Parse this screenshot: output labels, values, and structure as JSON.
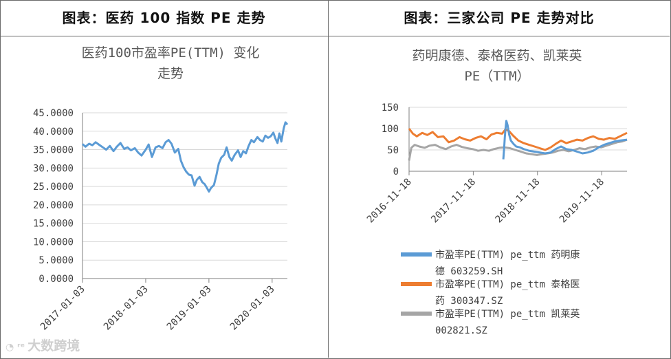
{
  "panels": {
    "left_title": "图表：医药 100 指数 PE 走势",
    "right_title": "图表：三家公司 PE 走势对比"
  },
  "watermark": "大数跨境",
  "chart_data": [
    {
      "type": "line",
      "title": "医药100市盈率PE(TTM) 变化走势",
      "title_lines": [
        "医药100市盈率PE(TTM) 变化",
        "走势"
      ],
      "ylim": [
        0,
        45
      ],
      "yticks": [
        "0.0000",
        "5.0000",
        "10.0000",
        "15.0000",
        "20.0000",
        "25.0000",
        "30.0000",
        "35.0000",
        "40.0000",
        "45.0000"
      ],
      "xlim": [
        "2017-01-03",
        "2020-03-31"
      ],
      "xticks": [
        "2017-01-03",
        "2018-01-03",
        "2019-01-03",
        "2020-01-03"
      ],
      "color": "#5b9bd5",
      "series": [
        {
          "name": "医药100市盈率PE(TTM)",
          "points": [
            [
              "2017-01-03",
              36.5
            ],
            [
              "2017-01-20",
              35.8
            ],
            [
              "2017-02-10",
              36.6
            ],
            [
              "2017-03-01",
              36.2
            ],
            [
              "2017-03-20",
              37.0
            ],
            [
              "2017-04-10",
              36.3
            ],
            [
              "2017-05-01",
              35.6
            ],
            [
              "2017-05-20",
              35.0
            ],
            [
              "2017-06-10",
              36.0
            ],
            [
              "2017-07-01",
              34.6
            ],
            [
              "2017-07-20",
              35.8
            ],
            [
              "2017-08-10",
              36.8
            ],
            [
              "2017-09-01",
              35.2
            ],
            [
              "2017-09-20",
              35.6
            ],
            [
              "2017-10-10",
              34.8
            ],
            [
              "2017-11-01",
              35.4
            ],
            [
              "2017-11-20",
              34.2
            ],
            [
              "2017-12-10",
              33.4
            ],
            [
              "2018-01-03",
              35.0
            ],
            [
              "2018-01-20",
              36.4
            ],
            [
              "2018-02-08",
              33.0
            ],
            [
              "2018-03-01",
              35.6
            ],
            [
              "2018-03-20",
              36.0
            ],
            [
              "2018-04-10",
              35.4
            ],
            [
              "2018-04-28",
              37.0
            ],
            [
              "2018-05-15",
              37.6
            ],
            [
              "2018-06-01",
              36.6
            ],
            [
              "2018-06-20",
              34.2
            ],
            [
              "2018-07-10",
              35.2
            ],
            [
              "2018-07-25",
              32.0
            ],
            [
              "2018-08-10",
              30.2
            ],
            [
              "2018-08-25",
              29.0
            ],
            [
              "2018-09-10",
              28.2
            ],
            [
              "2018-09-25",
              28.0
            ],
            [
              "2018-10-12",
              25.2
            ],
            [
              "2018-10-25",
              26.8
            ],
            [
              "2018-11-10",
              27.6
            ],
            [
              "2018-11-25",
              26.2
            ],
            [
              "2018-12-10",
              25.6
            ],
            [
              "2018-12-25",
              24.4
            ],
            [
              "2019-01-03",
              23.6
            ],
            [
              "2019-01-15",
              24.6
            ],
            [
              "2019-02-01",
              25.4
            ],
            [
              "2019-02-15",
              28.0
            ],
            [
              "2019-03-01",
              31.2
            ],
            [
              "2019-03-15",
              32.8
            ],
            [
              "2019-04-01",
              33.6
            ],
            [
              "2019-04-15",
              35.6
            ],
            [
              "2019-05-01",
              33.0
            ],
            [
              "2019-05-15",
              32.0
            ],
            [
              "2019-06-01",
              33.6
            ],
            [
              "2019-06-20",
              34.8
            ],
            [
              "2019-07-05",
              33.0
            ],
            [
              "2019-07-20",
              34.6
            ],
            [
              "2019-08-05",
              34.0
            ],
            [
              "2019-08-20",
              36.0
            ],
            [
              "2019-09-05",
              37.6
            ],
            [
              "2019-09-20",
              37.0
            ],
            [
              "2019-10-10",
              38.4
            ],
            [
              "2019-10-25",
              37.6
            ],
            [
              "2019-11-10",
              37.2
            ],
            [
              "2019-11-25",
              38.8
            ],
            [
              "2019-12-10",
              38.2
            ],
            [
              "2019-12-25",
              38.6
            ],
            [
              "2020-01-10",
              39.6
            ],
            [
              "2020-01-22",
              38.0
            ],
            [
              "2020-02-03",
              36.8
            ],
            [
              "2020-02-14",
              39.4
            ],
            [
              "2020-02-25",
              37.2
            ],
            [
              "2020-03-10",
              40.8
            ],
            [
              "2020-03-20",
              42.4
            ],
            [
              "2020-03-31",
              41.8
            ]
          ]
        }
      ]
    },
    {
      "type": "line",
      "title": "药明康德、泰格医药、凯莱英PE（TTM）",
      "title_lines": [
        "药明康德、泰格医药、凯莱英",
        "PE（TTM）"
      ],
      "ylim": [
        0,
        150
      ],
      "yticks": [
        "0",
        "50",
        "100",
        "150"
      ],
      "xlim": [
        "2016-11-18",
        "2020-04-10"
      ],
      "xticks": [
        "2016-11-18",
        "2017-11-18",
        "2018-11-18",
        "2019-11-18"
      ],
      "legend": "bottom",
      "series": [
        {
          "name": "市盈率PE(TTM) pe_ttm 药明康德 603259.SH",
          "label_lines": [
            "市盈率PE(TTM) pe_ttm 药明康",
            "德 603259.SH"
          ],
          "color": "#5b9bd5",
          "points": [
            [
              "2018-05-08",
              28
            ],
            [
              "2018-05-12",
              52
            ],
            [
              "2018-05-16",
              78
            ],
            [
              "2018-05-20",
              98
            ],
            [
              "2018-05-25",
              118
            ],
            [
              "2018-06-01",
              108
            ],
            [
              "2018-06-10",
              86
            ],
            [
              "2018-06-20",
              72
            ],
            [
              "2018-07-05",
              64
            ],
            [
              "2018-07-20",
              58
            ],
            [
              "2018-08-10",
              56
            ],
            [
              "2018-09-01",
              52
            ],
            [
              "2018-10-01",
              48
            ],
            [
              "2018-11-01",
              46
            ],
            [
              "2018-12-01",
              44
            ],
            [
              "2019-01-01",
              42
            ],
            [
              "2019-02-01",
              44
            ],
            [
              "2019-03-01",
              52
            ],
            [
              "2019-04-01",
              58
            ],
            [
              "2019-05-01",
              52
            ],
            [
              "2019-06-01",
              50
            ],
            [
              "2019-07-01",
              46
            ],
            [
              "2019-08-01",
              42
            ],
            [
              "2019-09-01",
              44
            ],
            [
              "2019-10-01",
              48
            ],
            [
              "2019-11-01",
              56
            ],
            [
              "2019-12-01",
              62
            ],
            [
              "2020-01-01",
              66
            ],
            [
              "2020-02-01",
              70
            ],
            [
              "2020-03-01",
              72
            ],
            [
              "2020-04-10",
              74
            ]
          ]
        },
        {
          "name": "市盈率PE(TTM) pe_ttm 泰格医药 300347.SZ",
          "label_lines": [
            "市盈率PE(TTM) pe_ttm 泰格医",
            "药 300347.SZ"
          ],
          "color": "#ed7d31",
          "points": [
            [
              "2016-11-18",
              100
            ],
            [
              "2016-12-10",
              88
            ],
            [
              "2017-01-01",
              82
            ],
            [
              "2017-02-01",
              90
            ],
            [
              "2017-03-01",
              85
            ],
            [
              "2017-04-01",
              92
            ],
            [
              "2017-05-01",
              80
            ],
            [
              "2017-06-01",
              82
            ],
            [
              "2017-07-01",
              68
            ],
            [
              "2017-08-01",
              72
            ],
            [
              "2017-09-01",
              80
            ],
            [
              "2017-10-01",
              75
            ],
            [
              "2017-11-01",
              72
            ],
            [
              "2017-12-01",
              78
            ],
            [
              "2018-01-01",
              82
            ],
            [
              "2018-02-01",
              75
            ],
            [
              "2018-03-01",
              86
            ],
            [
              "2018-04-01",
              90
            ],
            [
              "2018-05-01",
              88
            ],
            [
              "2018-05-20",
              98
            ],
            [
              "2018-06-10",
              94
            ],
            [
              "2018-07-01",
              84
            ],
            [
              "2018-08-01",
              72
            ],
            [
              "2018-09-01",
              66
            ],
            [
              "2018-10-01",
              62
            ],
            [
              "2018-11-01",
              58
            ],
            [
              "2018-12-01",
              54
            ],
            [
              "2019-01-01",
              50
            ],
            [
              "2019-02-01",
              56
            ],
            [
              "2019-03-01",
              64
            ],
            [
              "2019-04-01",
              72
            ],
            [
              "2019-05-01",
              66
            ],
            [
              "2019-06-01",
              70
            ],
            [
              "2019-07-01",
              74
            ],
            [
              "2019-08-01",
              72
            ],
            [
              "2019-09-01",
              78
            ],
            [
              "2019-10-01",
              82
            ],
            [
              "2019-11-01",
              76
            ],
            [
              "2019-12-01",
              74
            ],
            [
              "2020-01-01",
              78
            ],
            [
              "2020-02-01",
              76
            ],
            [
              "2020-03-01",
              82
            ],
            [
              "2020-04-10",
              90
            ]
          ]
        },
        {
          "name": "市盈率PE(TTM) pe_ttm 凯莱英 002821.SZ",
          "label_lines": [
            "市盈率PE(TTM) pe_ttm 凯莱英",
            "002821.SZ"
          ],
          "color": "#a5a5a5",
          "points": [
            [
              "2016-11-18",
              25
            ],
            [
              "2016-12-01",
              55
            ],
            [
              "2016-12-20",
              62
            ],
            [
              "2017-01-15",
              58
            ],
            [
              "2017-02-15",
              55
            ],
            [
              "2017-03-15",
              60
            ],
            [
              "2017-04-15",
              62
            ],
            [
              "2017-05-15",
              56
            ],
            [
              "2017-06-15",
              52
            ],
            [
              "2017-07-15",
              58
            ],
            [
              "2017-08-15",
              62
            ],
            [
              "2017-09-15",
              57
            ],
            [
              "2017-10-15",
              54
            ],
            [
              "2017-11-15",
              52
            ],
            [
              "2017-12-15",
              48
            ],
            [
              "2018-01-15",
              50
            ],
            [
              "2018-02-15",
              48
            ],
            [
              "2018-03-15",
              52
            ],
            [
              "2018-04-15",
              55
            ],
            [
              "2018-05-15",
              56
            ],
            [
              "2018-06-15",
              54
            ],
            [
              "2018-07-15",
              50
            ],
            [
              "2018-08-15",
              46
            ],
            [
              "2018-09-15",
              42
            ],
            [
              "2018-10-15",
              40
            ],
            [
              "2018-11-15",
              38
            ],
            [
              "2018-12-15",
              40
            ],
            [
              "2019-01-15",
              42
            ],
            [
              "2019-02-15",
              44
            ],
            [
              "2019-03-15",
              48
            ],
            [
              "2019-04-15",
              50
            ],
            [
              "2019-05-15",
              47
            ],
            [
              "2019-06-15",
              50
            ],
            [
              "2019-07-15",
              54
            ],
            [
              "2019-08-15",
              52
            ],
            [
              "2019-09-15",
              56
            ],
            [
              "2019-10-15",
              58
            ],
            [
              "2019-11-15",
              56
            ],
            [
              "2019-12-15",
              60
            ],
            [
              "2020-01-15",
              64
            ],
            [
              "2020-02-15",
              68
            ],
            [
              "2020-03-15",
              70
            ],
            [
              "2020-04-10",
              74
            ]
          ]
        }
      ]
    }
  ]
}
